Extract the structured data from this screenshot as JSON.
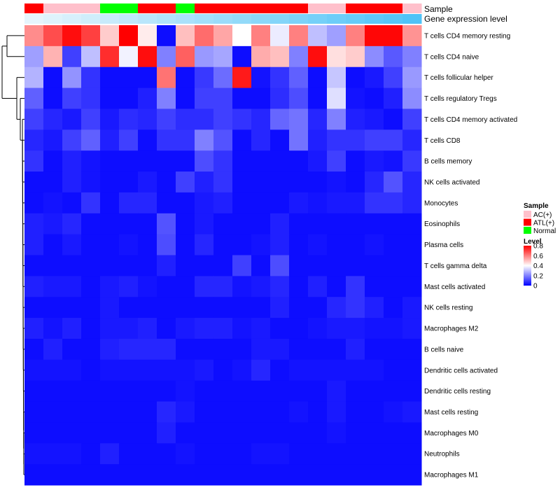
{
  "chart_data": {
    "type": "heatmap",
    "title": "",
    "annotation_tracks": [
      {
        "name": "Sample",
        "values": [
          "ATL(+)",
          "AC(+)",
          "AC(+)",
          "AC(+)",
          "Normal",
          "Normal",
          "ATL(+)",
          "ATL(+)",
          "Normal",
          "ATL(+)",
          "ATL(+)",
          "ATL(+)",
          "ATL(+)",
          "ATL(+)",
          "ATL(+)",
          "AC(+)",
          "AC(+)",
          "ATL(+)",
          "ATL(+)",
          "ATL(+)",
          "AC(+)"
        ]
      },
      {
        "name": "Gene expression level",
        "values": [
          0.0,
          0.05,
          0.1,
          0.15,
          0.2,
          0.25,
          0.3,
          0.35,
          0.4,
          0.45,
          0.5,
          0.55,
          0.6,
          0.65,
          0.7,
          0.75,
          0.8,
          0.85,
          0.9,
          0.95,
          1.0
        ]
      }
    ],
    "rows": [
      "T cells CD4 memory resting",
      "T cells CD4 naive",
      "T cells follicular helper",
      "T cells regulatory  Tregs",
      "T cells CD4 memory activated",
      "T cells CD8",
      "B cells memory",
      "NK cells activated",
      "Monocytes",
      "Eosinophils",
      "Plasma cells",
      "T cells gamma delta",
      "Mast cells activated",
      "NK cells resting",
      "Macrophages M2",
      "B cells naive",
      "Dendritic cells activated",
      "Dendritic cells resting",
      "Mast cells resting",
      "Macrophages M0",
      "Neutrophils",
      "Macrophages M1"
    ],
    "values": [
      [
        0.58,
        0.68,
        0.78,
        0.7,
        0.48,
        0.8,
        0.43,
        0.02,
        0.5,
        0.63,
        0.54,
        0.4,
        0.6,
        0.37,
        0.6,
        0.3,
        0.25,
        0.6,
        0.79,
        0.79,
        0.57
      ],
      [
        0.25,
        0.52,
        0.1,
        0.3,
        0.73,
        0.38,
        0.78,
        0.2,
        0.65,
        0.24,
        0.26,
        0.02,
        0.53,
        0.5,
        0.2,
        0.78,
        0.45,
        0.48,
        0.22,
        0.14,
        0.2
      ],
      [
        0.28,
        0.02,
        0.23,
        0.08,
        0.02,
        0.02,
        0.02,
        0.62,
        0.02,
        0.09,
        0.17,
        0.76,
        0.03,
        0.08,
        0.15,
        0.02,
        0.31,
        0.02,
        0.04,
        0.1,
        0.24
      ],
      [
        0.15,
        0.02,
        0.1,
        0.08,
        0.02,
        0.02,
        0.05,
        0.2,
        0.02,
        0.1,
        0.1,
        0.02,
        0.02,
        0.07,
        0.12,
        0.02,
        0.35,
        0.03,
        0.02,
        0.05,
        0.22
      ],
      [
        0.1,
        0.06,
        0.04,
        0.1,
        0.04,
        0.07,
        0.06,
        0.1,
        0.07,
        0.07,
        0.1,
        0.08,
        0.06,
        0.16,
        0.18,
        0.06,
        0.2,
        0.05,
        0.04,
        0.02,
        0.1
      ],
      [
        0.06,
        0.04,
        0.1,
        0.15,
        0.05,
        0.1,
        0.02,
        0.08,
        0.08,
        0.2,
        0.13,
        0.02,
        0.06,
        0.02,
        0.18,
        0.05,
        0.08,
        0.08,
        0.1,
        0.1,
        0.06
      ],
      [
        0.08,
        0.02,
        0.05,
        0.03,
        0.02,
        0.02,
        0.02,
        0.02,
        0.02,
        0.12,
        0.08,
        0.02,
        0.02,
        0.02,
        0.02,
        0.04,
        0.1,
        0.02,
        0.04,
        0.03,
        0.09
      ],
      [
        0.02,
        0.02,
        0.05,
        0.03,
        0.02,
        0.02,
        0.04,
        0.02,
        0.1,
        0.05,
        0.08,
        0.02,
        0.02,
        0.02,
        0.02,
        0.02,
        0.03,
        0.02,
        0.06,
        0.13,
        0.06
      ],
      [
        0.02,
        0.03,
        0.02,
        0.08,
        0.02,
        0.06,
        0.06,
        0.02,
        0.02,
        0.04,
        0.05,
        0.02,
        0.02,
        0.02,
        0.04,
        0.03,
        0.04,
        0.04,
        0.08,
        0.08,
        0.06
      ],
      [
        0.05,
        0.04,
        0.06,
        0.02,
        0.02,
        0.02,
        0.02,
        0.13,
        0.02,
        0.04,
        0.02,
        0.02,
        0.02,
        0.05,
        0.02,
        0.02,
        0.02,
        0.02,
        0.02,
        0.02,
        0.02
      ],
      [
        0.05,
        0.02,
        0.04,
        0.02,
        0.02,
        0.03,
        0.02,
        0.12,
        0.02,
        0.06,
        0.02,
        0.02,
        0.03,
        0.05,
        0.02,
        0.03,
        0.02,
        0.02,
        0.03,
        0.02,
        0.02
      ],
      [
        0.02,
        0.02,
        0.02,
        0.02,
        0.02,
        0.02,
        0.02,
        0.05,
        0.02,
        0.02,
        0.02,
        0.1,
        0.02,
        0.12,
        0.02,
        0.02,
        0.02,
        0.02,
        0.02,
        0.02,
        0.02
      ],
      [
        0.05,
        0.04,
        0.04,
        0.02,
        0.04,
        0.05,
        0.03,
        0.02,
        0.02,
        0.06,
        0.06,
        0.03,
        0.04,
        0.06,
        0.02,
        0.05,
        0.02,
        0.08,
        0.02,
        0.02,
        0.02
      ],
      [
        0.02,
        0.02,
        0.02,
        0.02,
        0.04,
        0.02,
        0.02,
        0.02,
        0.02,
        0.02,
        0.02,
        0.02,
        0.02,
        0.05,
        0.02,
        0.02,
        0.06,
        0.08,
        0.05,
        0.02,
        0.04
      ],
      [
        0.05,
        0.03,
        0.05,
        0.02,
        0.04,
        0.04,
        0.05,
        0.02,
        0.04,
        0.05,
        0.05,
        0.03,
        0.04,
        0.02,
        0.02,
        0.03,
        0.04,
        0.04,
        0.03,
        0.03,
        0.04
      ],
      [
        0.02,
        0.05,
        0.02,
        0.02,
        0.05,
        0.06,
        0.06,
        0.06,
        0.02,
        0.02,
        0.02,
        0.02,
        0.04,
        0.04,
        0.02,
        0.02,
        0.02,
        0.05,
        0.02,
        0.02,
        0.02
      ],
      [
        0.03,
        0.03,
        0.03,
        0.02,
        0.03,
        0.03,
        0.03,
        0.03,
        0.03,
        0.04,
        0.02,
        0.03,
        0.06,
        0.02,
        0.03,
        0.03,
        0.03,
        0.03,
        0.03,
        0.02,
        0.02
      ],
      [
        0.02,
        0.02,
        0.02,
        0.02,
        0.02,
        0.02,
        0.02,
        0.02,
        0.03,
        0.02,
        0.02,
        0.02,
        0.02,
        0.02,
        0.02,
        0.02,
        0.04,
        0.02,
        0.02,
        0.02,
        0.02
      ],
      [
        0.02,
        0.02,
        0.02,
        0.02,
        0.02,
        0.02,
        0.02,
        0.06,
        0.04,
        0.02,
        0.02,
        0.02,
        0.02,
        0.02,
        0.03,
        0.02,
        0.04,
        0.02,
        0.02,
        0.03,
        0.04
      ],
      [
        0.02,
        0.02,
        0.02,
        0.02,
        0.02,
        0.02,
        0.02,
        0.05,
        0.02,
        0.02,
        0.02,
        0.02,
        0.02,
        0.02,
        0.02,
        0.02,
        0.03,
        0.02,
        0.02,
        0.02,
        0.02
      ],
      [
        0.03,
        0.03,
        0.03,
        0.02,
        0.05,
        0.02,
        0.02,
        0.02,
        0.03,
        0.02,
        0.02,
        0.02,
        0.03,
        0.03,
        0.02,
        0.02,
        0.02,
        0.02,
        0.02,
        0.02,
        0.02
      ],
      [
        0.02,
        0.02,
        0.02,
        0.02,
        0.02,
        0.02,
        0.02,
        0.02,
        0.02,
        0.02,
        0.02,
        0.02,
        0.02,
        0.02,
        0.02,
        0.02,
        0.02,
        0.02,
        0.02,
        0.02,
        0.02
      ]
    ],
    "legend": {
      "sample_title": "Sample",
      "sample_items": [
        {
          "label": "AC(+)",
          "color": "#FFC0CB"
        },
        {
          "label": "ATL(+)",
          "color": "#FF0000"
        },
        {
          "label": "Normal",
          "color": "#00FF00"
        }
      ],
      "level_title": "Level",
      "level_ticks": [
        "0.8",
        "0.6",
        "0.4",
        "0.2",
        "0"
      ],
      "level_tick_values": [
        0.8,
        0.6,
        0.4,
        0.2,
        0
      ],
      "range": [
        0,
        0.8
      ]
    },
    "colors": {
      "low": "#0000FF",
      "mid": "#FFFFFF",
      "high": "#FF0000",
      "expr_low": "#E6F5FC",
      "expr_high": "#4FC3F7"
    }
  }
}
